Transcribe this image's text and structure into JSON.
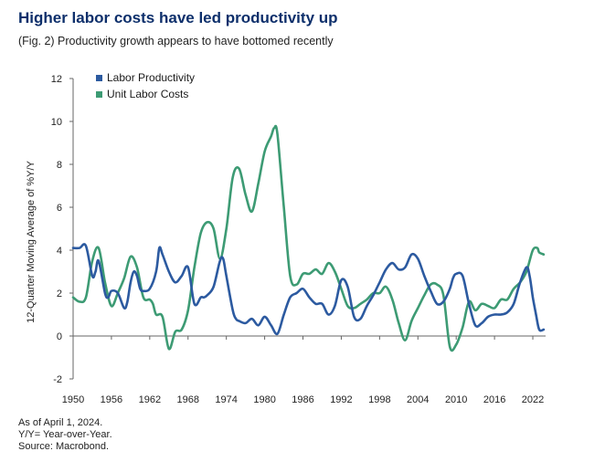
{
  "header": {
    "title": "Higher labor costs have led productivity up",
    "subtitle": "(Fig. 2) Productivity growth appears to have bottomed recently"
  },
  "notes": [
    "As of April 1, 2024.",
    "Y/Y= Year-over-Year.",
    "Source: Macrobond."
  ],
  "chart_data": {
    "type": "line",
    "title": "Higher labor costs have led productivity up",
    "subtitle": "(Fig. 2) Productivity growth appears to have bottomed recently",
    "xlabel": "",
    "ylabel": "12-Quarter Moving Average of %Y/Y",
    "xlim": [
      1950,
      2024
    ],
    "ylim": [
      -2,
      12
    ],
    "x_ticks": [
      1950,
      1956,
      1962,
      1968,
      1974,
      1980,
      1986,
      1992,
      1998,
      2004,
      2010,
      2016,
      2022
    ],
    "y_ticks": [
      -2,
      0,
      2,
      4,
      6,
      8,
      10,
      12
    ],
    "grid": false,
    "legend_position": "top-left",
    "series": [
      {
        "name": "Labor Productivity",
        "color": "#2c5aa0",
        "x": [
          1950,
          1951,
          1952,
          1953,
          1953.5,
          1954,
          1955,
          1955.5,
          1956,
          1957,
          1958,
          1958.5,
          1959,
          1959.5,
          1960,
          1960.5,
          1961,
          1962,
          1963,
          1963.5,
          1964,
          1965,
          1966,
          1967,
          1968,
          1969,
          1970,
          1970.5,
          1971,
          1972,
          1973,
          1973.5,
          1974,
          1975,
          1975.5,
          1976,
          1977,
          1978,
          1979,
          1980,
          1981,
          1982,
          1983,
          1984,
          1985,
          1986,
          1987,
          1988,
          1989,
          1990,
          1991,
          1992,
          1993,
          1994,
          1995,
          1996,
          1997,
          1998,
          1999,
          2000,
          2001,
          2002,
          2003,
          2004,
          2005,
          2006,
          2007,
          2008,
          2009,
          2009.5,
          2010,
          2011,
          2012,
          2013,
          2014,
          2015,
          2016,
          2017,
          2018,
          2019,
          2020,
          2021,
          2021.5,
          2022,
          2022.5,
          2023,
          2023.7
        ],
        "y": [
          4.1,
          4.1,
          4.2,
          2.8,
          3.0,
          3.5,
          2.0,
          1.8,
          2.1,
          2.0,
          1.3,
          1.6,
          2.5,
          3.0,
          2.8,
          2.2,
          2.1,
          2.2,
          3.0,
          4.1,
          3.8,
          3.0,
          2.5,
          2.8,
          3.2,
          1.5,
          1.8,
          1.8,
          1.9,
          2.3,
          3.5,
          3.6,
          2.8,
          1.2,
          0.8,
          0.7,
          0.6,
          0.8,
          0.5,
          0.9,
          0.5,
          0.1,
          1.0,
          1.8,
          2.0,
          2.2,
          1.8,
          1.5,
          1.5,
          1.0,
          1.4,
          2.6,
          2.3,
          0.9,
          0.8,
          1.4,
          1.9,
          2.5,
          3.1,
          3.4,
          3.1,
          3.2,
          3.8,
          3.6,
          2.8,
          2.1,
          1.5,
          1.6,
          2.2,
          2.7,
          2.9,
          2.8,
          1.5,
          0.5,
          0.6,
          0.9,
          1.0,
          1.0,
          1.1,
          1.5,
          2.5,
          3.2,
          2.8,
          1.8,
          1.0,
          0.3,
          0.3
        ]
      },
      {
        "name": "Unit Labor Costs",
        "color": "#3d9b74",
        "x": [
          1950,
          1951,
          1952,
          1953,
          1954,
          1955,
          1956,
          1957,
          1958,
          1959,
          1960,
          1961,
          1962,
          1962.5,
          1963,
          1964,
          1965,
          1966,
          1967,
          1968,
          1969,
          1970,
          1971,
          1972,
          1973,
          1974,
          1975,
          1976,
          1977,
          1978,
          1979,
          1980,
          1981,
          1981.5,
          1982,
          1983,
          1984,
          1985,
          1986,
          1987,
          1988,
          1989,
          1990,
          1991,
          1992,
          1993,
          1994,
          1995,
          1996,
          1997,
          1998,
          1999,
          2000,
          2001,
          2002,
          2003,
          2004,
          2005,
          2006,
          2007,
          2008,
          2009,
          2010,
          2011,
          2012,
          2013,
          2014,
          2015,
          2016,
          2017,
          2018,
          2019,
          2020,
          2021,
          2022,
          2022.7,
          2023,
          2023.7
        ],
        "y": [
          1.8,
          1.6,
          1.8,
          3.5,
          4.1,
          2.5,
          1.4,
          2.0,
          2.7,
          3.7,
          3.2,
          1.8,
          1.7,
          1.5,
          1.0,
          0.9,
          -0.6,
          0.2,
          0.3,
          1.2,
          3.2,
          4.8,
          5.3,
          5.0,
          3.6,
          5.0,
          7.4,
          7.8,
          6.6,
          5.8,
          7.1,
          8.6,
          9.3,
          9.7,
          9.4,
          6.0,
          2.8,
          2.4,
          2.9,
          2.9,
          3.1,
          2.9,
          3.4,
          3.0,
          2.2,
          1.4,
          1.3,
          1.5,
          1.7,
          2.0,
          2.0,
          2.3,
          1.7,
          0.6,
          -0.2,
          0.7,
          1.3,
          1.9,
          2.4,
          2.4,
          1.9,
          -0.5,
          -0.4,
          0.4,
          1.6,
          1.2,
          1.5,
          1.4,
          1.3,
          1.7,
          1.7,
          2.2,
          2.5,
          3.0,
          4.0,
          4.1,
          3.9,
          3.8
        ]
      }
    ]
  }
}
